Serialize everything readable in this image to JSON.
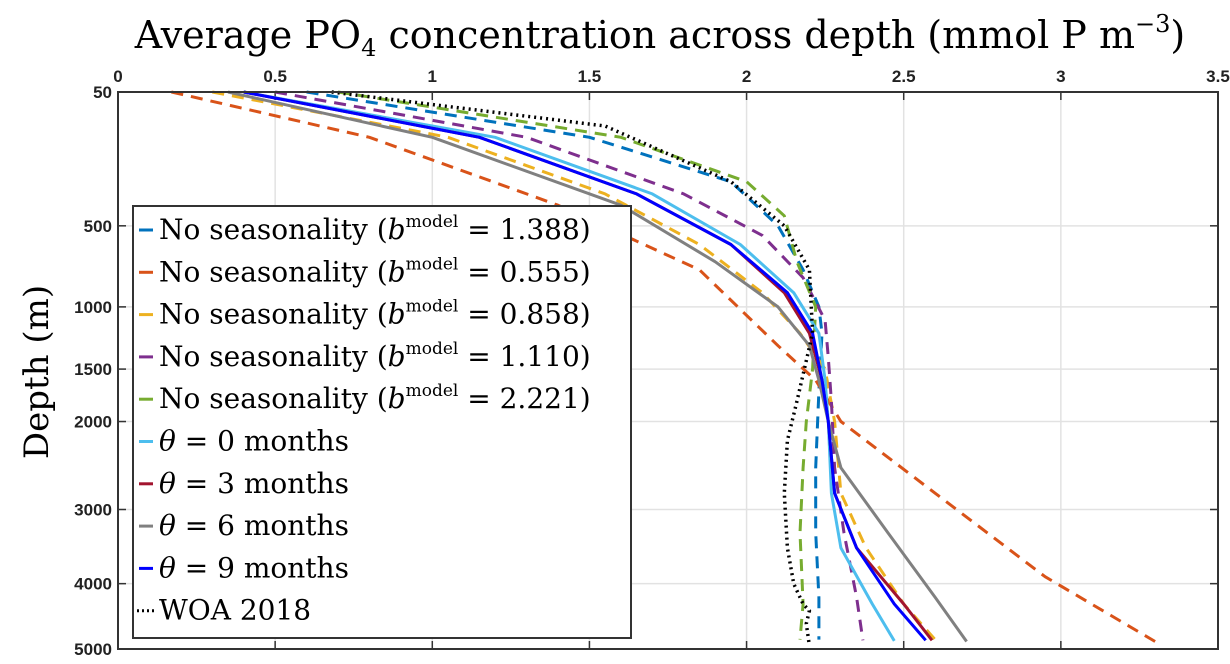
{
  "chart_data": {
    "type": "line",
    "title_main": "Average PO",
    "title_sub": "4",
    "title_tail": " concentration across depth (mmol P m",
    "title_sup": "−3",
    "title_close": ")",
    "ylabel": "Depth (m)",
    "xlim": [
      0,
      3.5
    ],
    "ylim": [
      50,
      5000
    ],
    "y_scale": "sqrt",
    "y_reversed": true,
    "x_axis_position": "top",
    "grid": true,
    "legend_position": "bottom-left",
    "x_ticks": [
      "0",
      "0.5",
      "1",
      "1.5",
      "2",
      "2.5",
      "3",
      "3.5"
    ],
    "x_tick_values": [
      0,
      0.5,
      1,
      1.5,
      2,
      2.5,
      3,
      3.5
    ],
    "y_ticks": [
      "50",
      "500",
      "1000",
      "1500",
      "2000",
      "3000",
      "4000",
      "5000"
    ],
    "y_tick_values": [
      50,
      500,
      1000,
      1500,
      2000,
      3000,
      4000,
      5000
    ],
    "series": [
      {
        "name": "No seasonality (b^model = 1.388)",
        "legend": {
          "pre": "No seasonality (",
          "b": "b",
          "sup": "model",
          "post": " = 1.388)"
        },
        "color": "#0072BD",
        "dash": "dashed",
        "x": [
          0.6,
          1.5,
          1.95,
          2.1,
          2.18,
          2.23,
          2.24,
          2.23,
          2.22,
          2.22,
          2.23,
          2.23
        ],
        "y": [
          50,
          150,
          300,
          500,
          750,
          1000,
          1200,
          1700,
          2500,
          3300,
          4200,
          4850
        ]
      },
      {
        "name": "No seasonality (b^model = 0.555)",
        "legend": {
          "pre": "No seasonality (",
          "b": "b",
          "sup": "model",
          "post": " = 0.555)"
        },
        "color": "#D95319",
        "dash": "dashed",
        "x": [
          0.17,
          0.8,
          1.4,
          1.85,
          2.1,
          2.22,
          2.3,
          2.6,
          2.95,
          3.3
        ],
        "y": [
          50,
          150,
          400,
          750,
          1300,
          1600,
          2000,
          2800,
          3900,
          4880
        ]
      },
      {
        "name": "No seasonality (b^model = 0.858)",
        "legend": {
          "pre": "No seasonality (",
          "b": "b",
          "sup": "model",
          "post": " = 0.858)"
        },
        "color": "#EDB120",
        "dash": "dashed",
        "x": [
          0.3,
          1.05,
          1.55,
          1.85,
          2.05,
          2.17,
          2.25,
          2.28,
          2.3,
          2.38,
          2.5,
          2.6
        ],
        "y": [
          50,
          150,
          350,
          600,
          900,
          1200,
          1500,
          2000,
          2800,
          3500,
          4300,
          4850
        ]
      },
      {
        "name": "No seasonality (b^model = 1.110)",
        "legend": {
          "pre": "No seasonality (",
          "b": "b",
          "sup": "model",
          "post": " = 1.110)"
        },
        "color": "#7E2F8E",
        "dash": "dashed",
        "x": [
          0.5,
          1.3,
          1.8,
          2.05,
          2.18,
          2.25,
          2.26,
          2.27,
          2.28,
          2.31,
          2.35,
          2.37
        ],
        "y": [
          50,
          150,
          350,
          550,
          800,
          1100,
          1400,
          1800,
          2500,
          3300,
          4200,
          4860
        ]
      },
      {
        "name": "No seasonality (b^model = 2.221)",
        "legend": {
          "pre": "No seasonality (",
          "b": "b",
          "sup": "model",
          "post": " = 2.221)"
        },
        "color": "#77AC30",
        "dash": "dashed",
        "x": [
          0.7,
          1.6,
          2.0,
          2.12,
          2.16,
          2.22,
          2.21,
          2.19,
          2.18,
          2.17,
          2.18,
          2.17
        ],
        "y": [
          50,
          150,
          300,
          450,
          700,
          1000,
          1500,
          2000,
          2500,
          3300,
          4300,
          4850
        ]
      },
      {
        "name": "θ = 0 months",
        "legend": {
          "theta": "θ",
          "post": " = 0 months"
        },
        "color": "#4DBEEE",
        "dash": "solid",
        "x": [
          0.4,
          1.2,
          1.7,
          1.98,
          2.15,
          2.23,
          2.25,
          2.26,
          2.27,
          2.3,
          2.4,
          2.47
        ],
        "y": [
          50,
          150,
          350,
          600,
          900,
          1200,
          1600,
          2000,
          2800,
          3500,
          4300,
          4870
        ]
      },
      {
        "name": "θ = 3 months",
        "legend": {
          "theta": "θ",
          "post": " = 3 months"
        },
        "color": "#A2142F",
        "dash": "solid",
        "x": [
          0.4,
          1.15,
          1.65,
          1.95,
          2.12,
          2.2,
          2.24,
          2.26,
          2.28,
          2.35,
          2.5,
          2.59
        ],
        "y": [
          50,
          150,
          350,
          600,
          900,
          1200,
          1600,
          2000,
          2800,
          3500,
          4300,
          4860
        ]
      },
      {
        "name": "θ = 6 months",
        "legend": {
          "theta": "θ",
          "post": " = 6 months"
        },
        "color": "#808080",
        "dash": "solid",
        "x": [
          0.35,
          1.0,
          1.6,
          1.9,
          2.1,
          2.2,
          2.23,
          2.26,
          2.3,
          2.45,
          2.6,
          2.7
        ],
        "y": [
          50,
          150,
          400,
          700,
          1000,
          1300,
          1600,
          2000,
          2500,
          3300,
          4200,
          4880
        ]
      },
      {
        "name": "θ = 9 months",
        "legend": {
          "theta": "θ",
          "post": " = 9 months"
        },
        "color": "#0000FF",
        "dash": "solid",
        "x": [
          0.4,
          1.15,
          1.65,
          1.95,
          2.13,
          2.21,
          2.24,
          2.26,
          2.28,
          2.35,
          2.47,
          2.57
        ],
        "y": [
          50,
          150,
          350,
          600,
          900,
          1200,
          1600,
          2000,
          2800,
          3500,
          4300,
          4860
        ]
      },
      {
        "name": "WOA 2018",
        "legend": {
          "post": "WOA 2018"
        },
        "color": "#000000",
        "dash": "dotted",
        "x": [
          0.68,
          1.55,
          1.95,
          2.12,
          2.2,
          2.21,
          2.16,
          2.13,
          2.12,
          2.13,
          2.15,
          2.18,
          2.2,
          2.19,
          2.2
        ],
        "y": [
          50,
          120,
          300,
          500,
          750,
          1200,
          1800,
          2200,
          2800,
          3500,
          4000,
          4300,
          4400,
          4600,
          4950
        ]
      }
    ]
  }
}
